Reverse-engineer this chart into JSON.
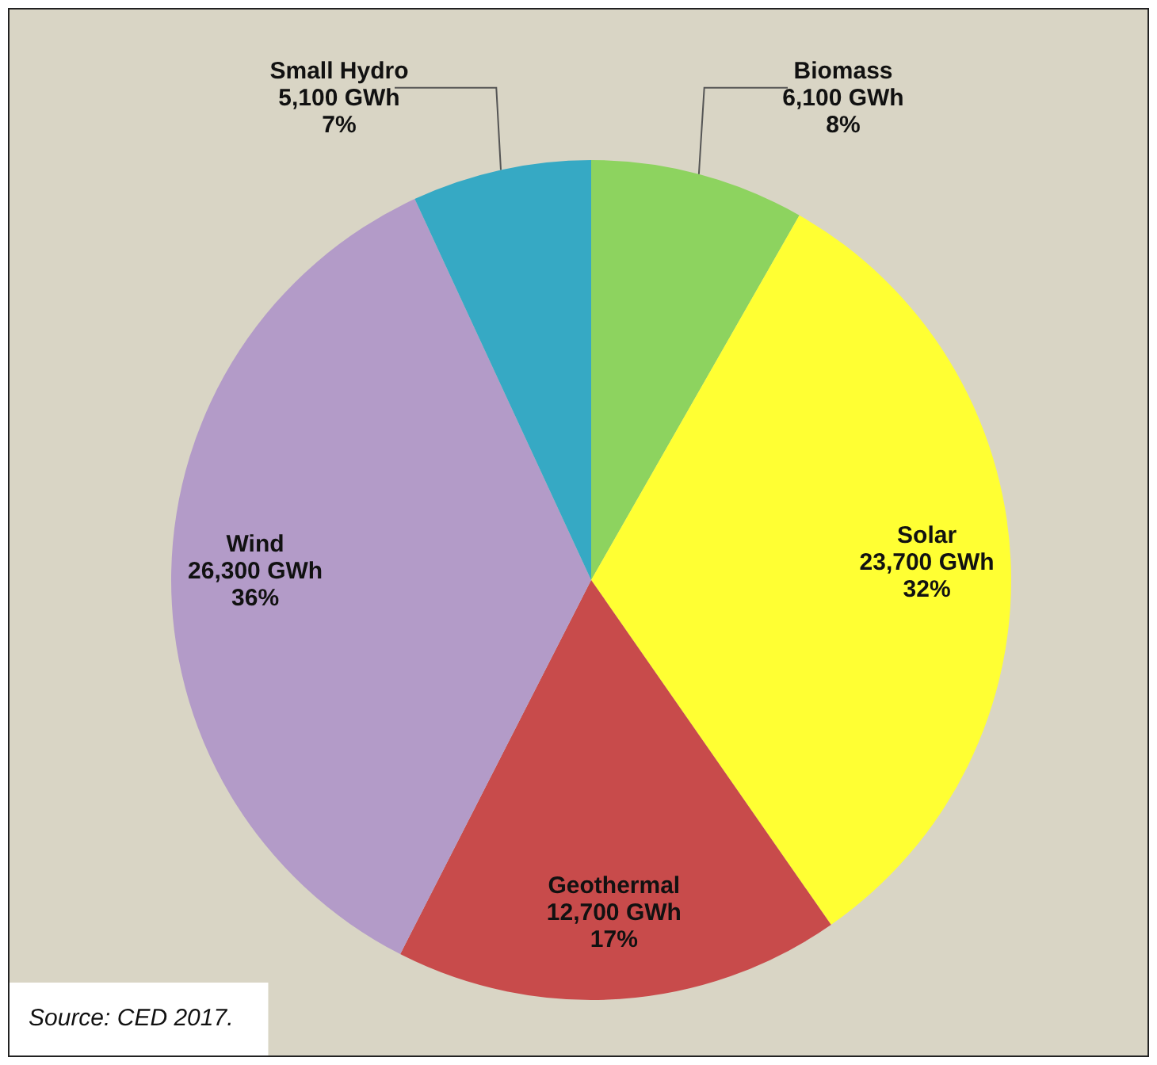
{
  "chart_data": {
    "type": "pie",
    "categories": [
      "Biomass",
      "Solar",
      "Geothermal",
      "Wind",
      "Small Hydro"
    ],
    "values": [
      6100,
      23700,
      12700,
      26300,
      5100
    ],
    "colors": [
      "#8dd35f",
      "#ffff33",
      "#c84b4b",
      "#b39bc8",
      "#36a9c4"
    ],
    "value_labels": [
      "6,100 GWh\n8%",
      "23,700 GWh\n32%",
      "12,700 GWh\n17%",
      "26,300 GWh\n36%",
      "5,100 GWh\n7%"
    ],
    "legend": false,
    "annotations": [
      "Source: CED 2017."
    ]
  }
}
